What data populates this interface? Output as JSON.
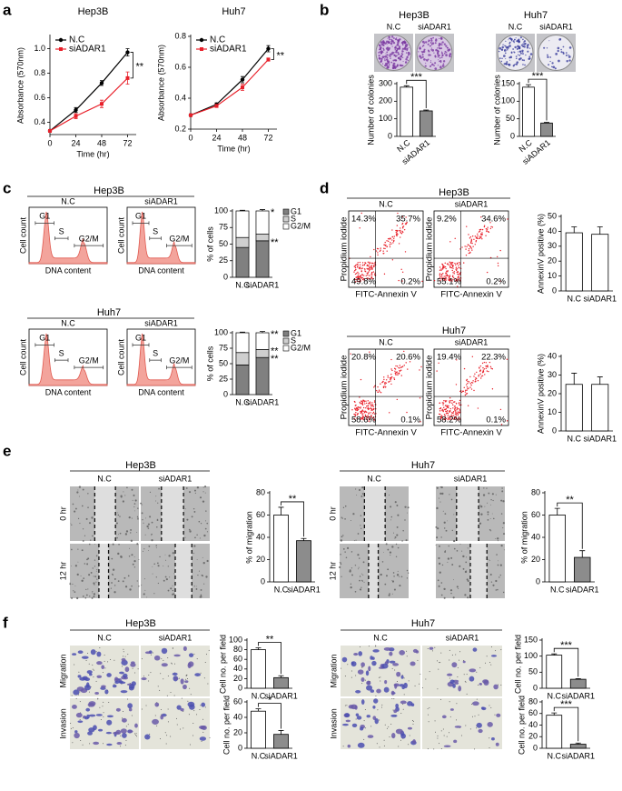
{
  "panel_letters": [
    "a",
    "b",
    "c",
    "d",
    "e",
    "f"
  ],
  "panels": {
    "b": [
      {
        "title": "Hep3B",
        "columns": [
          "N.C",
          "siADAR1"
        ]
      },
      {
        "title": "Huh7",
        "columns": [
          "N.C",
          "siADAR1"
        ]
      }
    ],
    "c": [
      {
        "title": "Hep3B",
        "columns": [
          "N.C",
          "siADAR1"
        ],
        "gate_labels": [
          "G1",
          "S",
          "G2/M"
        ],
        "y_label": "Cell count",
        "x_label": "DNA content"
      },
      {
        "title": "Huh7",
        "columns": [
          "N.C",
          "siADAR1"
        ],
        "gate_labels": [
          "G1",
          "S",
          "G2/M"
        ],
        "y_label": "Cell count",
        "x_label": "DNA content"
      }
    ],
    "d": [
      {
        "title": "Hep3B",
        "columns": [
          "N.C",
          "siADAR1"
        ],
        "y_label": "Propidium iodide",
        "x_label": "FITC-Annexin V",
        "quadrants": [
          [
            "14.3%",
            "35.7%",
            "49.8%",
            "0.2%"
          ],
          [
            "9.2%",
            "34.6%",
            "55.1%",
            "0.2%"
          ]
        ]
      },
      {
        "title": "Huh7",
        "columns": [
          "N.C",
          "siADAR1"
        ],
        "y_label": "Propidium iodide",
        "x_label": "FITC-Annexin V",
        "quadrants": [
          [
            "20.8%",
            "20.6%",
            "58.6%",
            "0.1%"
          ],
          [
            "19.4%",
            "22.3%",
            "58.2%",
            "0.1%"
          ]
        ]
      }
    ],
    "e": [
      {
        "title": "Hep3B",
        "columns": [
          "N.C",
          "siADAR1"
        ],
        "rows": [
          "0 hr",
          "12 hr"
        ]
      },
      {
        "title": "Huh7",
        "columns": [
          "N.C",
          "siADAR1"
        ],
        "rows": [
          "0 hr",
          "12 hr"
        ]
      }
    ],
    "f": [
      {
        "title": "Hep3B",
        "columns": [
          "N.C",
          "siADAR1"
        ],
        "rows": [
          "Migration",
          "Invasion"
        ]
      },
      {
        "title": "Huh7",
        "columns": [
          "N.C",
          "siADAR1"
        ],
        "rows": [
          "Migration",
          "Invasion"
        ]
      }
    ]
  },
  "chart_data": [
    {
      "type": "line",
      "title": "Hep3B",
      "x_label": "Time (hr)",
      "y_label": "Absorbance (570nm)",
      "x": [
        0,
        24,
        48,
        72
      ],
      "xlim": [
        0,
        80
      ],
      "xticks": [
        0,
        24,
        48,
        72
      ],
      "ylim": [
        0.3,
        1.1
      ],
      "yticks": [
        0.4,
        0.6,
        0.8,
        {
          "value": 1,
          "label": "1.0"
        }
      ],
      "legend": "upper left",
      "annotation": "**",
      "series": [
        {
          "name": "N.C",
          "color": "#000000",
          "values": [
            0.33,
            0.5,
            0.72,
            0.97
          ],
          "errors": [
            0.01,
            0.02,
            0.02,
            0.03
          ]
        },
        {
          "name": "siADAR1",
          "color": "#e8202a",
          "values": [
            0.33,
            0.45,
            0.55,
            0.76
          ],
          "errors": [
            0.01,
            0.02,
            0.03,
            0.05
          ]
        }
      ]
    },
    {
      "type": "line",
      "title": "Huh7",
      "x_label": "Time (hr)",
      "y_label": "Absorbance (570nm)",
      "x": [
        0,
        24,
        48,
        72
      ],
      "xlim": [
        0,
        80
      ],
      "xticks": [
        0,
        24,
        48,
        72
      ],
      "ylim": [
        0.2,
        0.8
      ],
      "yticks": [
        0.2,
        0.4,
        0.6,
        0.8
      ],
      "legend": "upper left",
      "annotation": "**",
      "series": [
        {
          "name": "N.C",
          "color": "#000000",
          "values": [
            0.29,
            0.36,
            0.52,
            0.72
          ],
          "errors": [
            0.005,
            0.01,
            0.02,
            0.02
          ]
        },
        {
          "name": "siADAR1",
          "color": "#e8202a",
          "values": [
            0.29,
            0.35,
            0.47,
            0.65
          ],
          "errors": [
            0.005,
            0.01,
            0.02,
            0.01
          ]
        }
      ]
    },
    {
      "type": "bar",
      "y_label": "Number of colonies",
      "categories": [
        "N.C",
        "siADAR1"
      ],
      "values": [
        280,
        145
      ],
      "errors": [
        8,
        5
      ],
      "colors": [
        "#ffffff",
        "#8c8c8c"
      ],
      "ylim": [
        0,
        300
      ],
      "yticks": [
        0,
        100,
        200,
        300
      ],
      "rotated_labels": true,
      "annotation": "***"
    },
    {
      "type": "bar",
      "y_label": "Number of colonies",
      "categories": [
        "N.C",
        "siADAR1"
      ],
      "values": [
        140,
        38
      ],
      "errors": [
        7,
        2
      ],
      "colors": [
        "#ffffff",
        "#8c8c8c"
      ],
      "ylim": [
        0,
        150
      ],
      "yticks": [
        0,
        50,
        100,
        150
      ],
      "rotated_labels": true,
      "annotation": "***"
    },
    {
      "type": "stacked_bar",
      "y_label": "% of cells",
      "categories": [
        "N.C",
        "siADAR1"
      ],
      "ylim": [
        0,
        100
      ],
      "yticks": [
        0,
        25,
        50,
        75,
        100
      ],
      "legend": "right",
      "series": [
        {
          "name": "G1",
          "color": "#808080",
          "values": [
            45,
            55
          ],
          "errors": [
            2,
            3
          ],
          "annotation": "**"
        },
        {
          "name": "S",
          "color": "#cfcfcf",
          "values": [
            15,
            10
          ],
          "errors": [
            2,
            2
          ]
        },
        {
          "name": "G2/M",
          "color": "#ffffff",
          "values": [
            40,
            35
          ],
          "errors": [
            1,
            2
          ],
          "annotation": "*"
        }
      ]
    },
    {
      "type": "stacked_bar",
      "y_label": "% of cells",
      "categories": [
        "N.C",
        "siADAR1"
      ],
      "ylim": [
        0,
        100
      ],
      "yticks": [
        0,
        25,
        50,
        75,
        100
      ],
      "legend": "right",
      "series": [
        {
          "name": "G1",
          "color": "#808080",
          "values": [
            48,
            60
          ],
          "errors": [
            2,
            2
          ],
          "annotation": "**"
        },
        {
          "name": "S",
          "color": "#cfcfcf",
          "values": [
            20,
            13
          ],
          "errors": [
            2,
            2
          ],
          "annotation": "**"
        },
        {
          "name": "G2/M",
          "color": "#ffffff",
          "values": [
            32,
            27
          ],
          "errors": [
            1,
            2
          ],
          "annotation": "**"
        }
      ]
    },
    {
      "type": "bar",
      "y_label": "AnnexinV positive (%)",
      "categories": [
        "N.C",
        "siADAR1"
      ],
      "values": [
        39,
        38
      ],
      "errors": [
        4,
        5
      ],
      "colors": [
        "#ffffff",
        "#ffffff"
      ],
      "ylim": [
        0,
        50
      ],
      "yticks": [
        0,
        10,
        20,
        30,
        40,
        50
      ]
    },
    {
      "type": "bar",
      "y_label": "AnnexinV positive (%)",
      "categories": [
        "N.C",
        "siADAR1"
      ],
      "values": [
        25,
        25
      ],
      "errors": [
        6,
        4
      ],
      "colors": [
        "#ffffff",
        "#ffffff"
      ],
      "ylim": [
        0,
        40
      ],
      "yticks": [
        0,
        10,
        20,
        30,
        40
      ]
    },
    {
      "type": "bar",
      "y_label": "% of migration",
      "categories": [
        "N.C",
        "siADAR1"
      ],
      "values": [
        60,
        37
      ],
      "errors": [
        7,
        2
      ],
      "colors": [
        "#ffffff",
        "#8c8c8c"
      ],
      "ylim": [
        0,
        80
      ],
      "yticks": [
        0,
        20,
        40,
        60,
        80
      ],
      "annotation": "**"
    },
    {
      "type": "bar",
      "y_label": "% of migration",
      "categories": [
        "N.C",
        "siADAR1"
      ],
      "values": [
        60,
        22
      ],
      "errors": [
        6,
        6
      ],
      "colors": [
        "#ffffff",
        "#8c8c8c"
      ],
      "ylim": [
        0,
        80
      ],
      "yticks": [
        0,
        20,
        40,
        60,
        80
      ],
      "annotation": "**"
    },
    {
      "type": "bar",
      "y_label": "Cell no. per field",
      "categories": [
        "N.C",
        "siADAR1"
      ],
      "values": [
        80,
        22
      ],
      "errors": [
        4,
        4
      ],
      "colors": [
        "#ffffff",
        "#8c8c8c"
      ],
      "ylim": [
        0,
        100
      ],
      "yticks": [
        0,
        20,
        40,
        60,
        80,
        100
      ],
      "annotation": "**"
    },
    {
      "type": "bar",
      "y_label": "Cell no. per field",
      "categories": [
        "N.C",
        "siADAR1"
      ],
      "values": [
        48,
        18
      ],
      "errors": [
        3,
        5
      ],
      "colors": [
        "#ffffff",
        "#8c8c8c"
      ],
      "ylim": [
        0,
        60
      ],
      "yticks": [
        0,
        20,
        40,
        60
      ],
      "annotation": "*"
    },
    {
      "type": "bar",
      "y_label": "Cell no. per field",
      "categories": [
        "N.C",
        "siADAR1"
      ],
      "values": [
        103,
        28
      ],
      "errors": [
        4,
        2
      ],
      "colors": [
        "#ffffff",
        "#8c8c8c"
      ],
      "ylim": [
        0,
        150
      ],
      "yticks": [
        0,
        50,
        100,
        150
      ],
      "annotation": "***"
    },
    {
      "type": "bar",
      "y_label": "Cell no. per field",
      "categories": [
        "N.C",
        "siADAR1"
      ],
      "values": [
        57,
        7
      ],
      "errors": [
        4,
        2
      ],
      "colors": [
        "#ffffff",
        "#8c8c8c"
      ],
      "ylim": [
        0,
        80
      ],
      "yticks": [
        0,
        20,
        40,
        60,
        80
      ],
      "annotation": "***"
    }
  ]
}
